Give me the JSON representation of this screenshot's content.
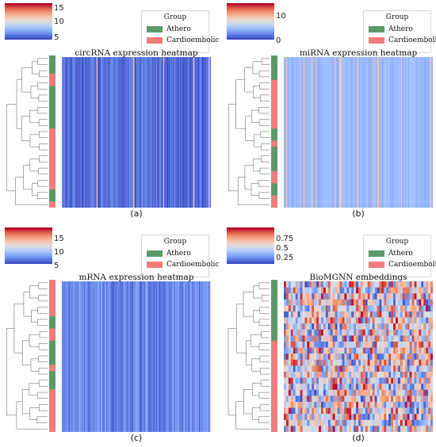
{
  "colors": {
    "athero": "#5b9a68",
    "cardio": "#f07c7c",
    "cool": "#3b4cc0",
    "warm": "#d62728"
  },
  "legend": {
    "title": "Group",
    "items": [
      "Athero",
      "Cardioembolic"
    ]
  },
  "chart_data": [
    {
      "type": "heatmap",
      "panel_label": "(a)",
      "title": "circRNA expression heatmap",
      "colorbar_ticks": [
        5,
        10,
        15
      ],
      "vrange": [
        4,
        17
      ],
      "palette": "coolwarm",
      "row_groups": [
        "Athero",
        "Athero",
        "Athero",
        "Cardioembolic",
        "Cardioembolic",
        "Athero",
        "Athero",
        "Athero",
        "Athero",
        "Athero",
        "Athero",
        "Athero",
        "Cardioembolic",
        "Cardioembolic",
        "Cardioembolic",
        "Cardioembolic",
        "Cardioembolic",
        "Cardioembolic",
        "Cardioembolic",
        "Cardioembolic",
        "Cardioembolic",
        "Cardioembolic",
        "Athero",
        "Athero",
        "Cardioembolic"
      ],
      "grid": false
    },
    {
      "type": "heatmap",
      "panel_label": "(b)",
      "title": "miRNA expression heatmap",
      "colorbar_ticks": [
        0,
        10
      ],
      "vrange": [
        0,
        14
      ],
      "palette": "coolwarm",
      "row_groups": [
        "Athero",
        "Athero",
        "Athero",
        "Athero",
        "Cardioembolic",
        "Cardioembolic",
        "Cardioembolic",
        "Cardioembolic",
        "Cardioembolic",
        "Cardioembolic",
        "Cardioembolic",
        "Cardioembolic",
        "Athero",
        "Athero",
        "Cardioembolic",
        "Athero",
        "Athero",
        "Athero",
        "Athero",
        "Cardioembolic",
        "Cardioembolic",
        "Athero",
        "Athero",
        "Cardioembolic",
        "Cardioembolic"
      ],
      "grid": false
    },
    {
      "type": "heatmap",
      "panel_label": "(c)",
      "title": "mRNA expression heatmap",
      "colorbar_ticks": [
        5,
        10,
        15
      ],
      "vrange": [
        4,
        17
      ],
      "palette": "coolwarm",
      "row_groups": [
        "Cardioembolic",
        "Cardioembolic",
        "Cardioembolic",
        "Cardioembolic",
        "Cardioembolic",
        "Cardioembolic",
        "Athero",
        "Athero",
        "Cardioembolic",
        "Cardioembolic",
        "Athero",
        "Athero",
        "Athero",
        "Athero",
        "Cardioembolic",
        "Athero",
        "Athero",
        "Athero",
        "Cardioembolic",
        "Cardioembolic",
        "Cardioembolic",
        "Cardioembolic",
        "Cardioembolic",
        "Cardioembolic",
        "Cardioembolic"
      ],
      "grid": false
    },
    {
      "type": "heatmap",
      "panel_label": "(d)",
      "title": "BioMGNN embeddings",
      "colorbar_ticks": [
        0.25,
        0.5,
        0.75
      ],
      "vrange": [
        0.1,
        0.9
      ],
      "palette": "coolwarm",
      "row_groups": [
        "Athero",
        "Athero",
        "Athero",
        "Athero",
        "Athero",
        "Athero",
        "Athero",
        "Athero",
        "Athero",
        "Athero",
        "Cardioembolic",
        "Cardioembolic",
        "Cardioembolic",
        "Cardioembolic",
        "Cardioembolic",
        "Cardioembolic",
        "Cardioembolic",
        "Cardioembolic",
        "Cardioembolic",
        "Cardioembolic",
        "Cardioembolic",
        "Cardioembolic",
        "Cardioembolic",
        "Cardioembolic",
        "Cardioembolic"
      ],
      "grid": false
    }
  ]
}
